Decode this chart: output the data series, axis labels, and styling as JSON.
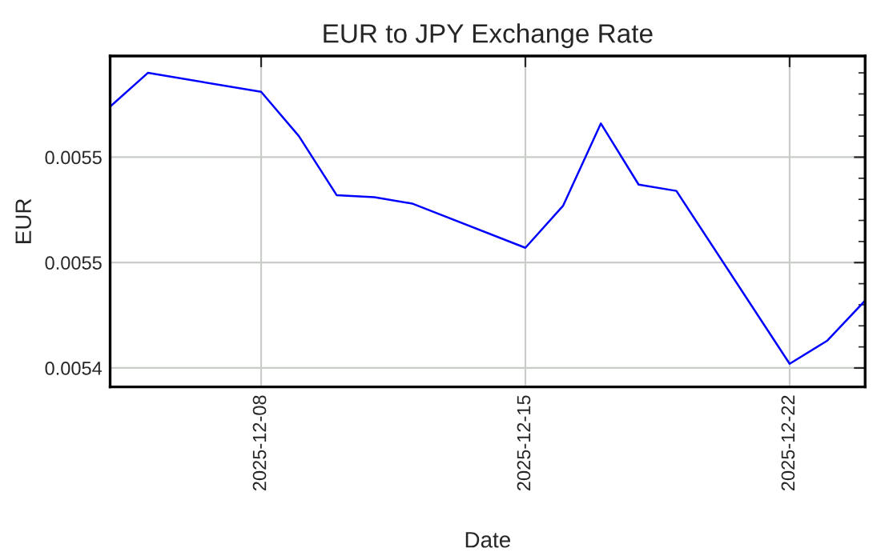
{
  "chart_data": {
    "type": "line",
    "title": "EUR to JPY Exchange Rate",
    "xlabel": "Date",
    "ylabel": "EUR",
    "x": [
      "2025-12-04",
      "2025-12-05",
      "2025-12-08",
      "2025-12-09",
      "2025-12-10",
      "2025-12-11",
      "2025-12-12",
      "2025-12-15",
      "2025-12-16",
      "2025-12-17",
      "2025-12-18",
      "2025-12-19",
      "2025-12-22",
      "2025-12-23",
      "2025-12-24"
    ],
    "series": [
      {
        "color": "#0000ff",
        "values": [
          0.005524,
          0.00554,
          0.005531,
          0.00551,
          0.005482,
          0.005481,
          0.005478,
          0.005457,
          0.005477,
          0.005516,
          0.005487,
          0.005484,
          0.005402,
          0.005413,
          0.005432
        ]
      }
    ],
    "xlim": [
      "2025-12-04",
      "2025-12-24"
    ],
    "xticks": [
      "2025-12-08",
      "2025-12-15",
      "2025-12-22"
    ],
    "ylim": [
      0.005391,
      0.005548
    ],
    "yticks": [
      {
        "value": 0.0054,
        "label": "0.0054"
      },
      {
        "value": 0.00545,
        "label": "0.0055"
      },
      {
        "value": 0.0055,
        "label": "0.0055"
      }
    ],
    "grid": true,
    "marker": "none",
    "line_style": "solid"
  }
}
